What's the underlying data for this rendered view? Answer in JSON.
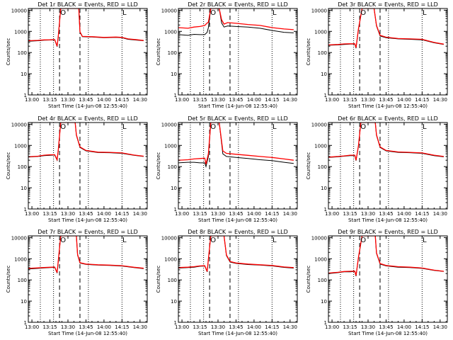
{
  "colors": {
    "background": "#ffffff",
    "axes": "#000000",
    "events": "#000000",
    "lld": "#ff0000"
  },
  "chart_data": {
    "type": "line",
    "layout": "3x3 grid",
    "x_tick_labels": [
      "13:00",
      "13:15",
      "13:30",
      "13:45",
      "14:00",
      "14:15",
      "14:30"
    ],
    "x_minutes_after_1300": [
      0,
      15,
      30,
      45,
      60,
      75,
      90
    ],
    "xlim_minutes": [
      -3,
      96
    ],
    "xlabel": "Start Time (14-Jun-08 12:55:40)",
    "ylabel": "Counts/sec",
    "yscale": "log",
    "ylim": [
      1,
      12000
    ],
    "y_tick_labels": [
      "1",
      "10",
      "100",
      "1000",
      "10000"
    ],
    "markers": {
      "dotted_vertical_minutes": [
        7,
        18,
        47,
        75
      ],
      "dashed_vertical_minutes": [
        23,
        40
      ],
      "symbols": [
        {
          "text": "O",
          "minute": 26
        },
        {
          "text": "L",
          "minute": 77
        }
      ]
    },
    "panels": [
      {
        "title": "Det 1r BLACK = Events, RED = LLD",
        "events": [
          [
            -3,
            340
          ],
          [
            5,
            360
          ],
          [
            10,
            380
          ],
          [
            15,
            390
          ],
          [
            19,
            400
          ],
          [
            21,
            190
          ],
          [
            22,
            600
          ],
          [
            24,
            12000
          ],
          [
            39,
            12000
          ],
          [
            40,
            900
          ],
          [
            42,
            560
          ],
          [
            50,
            540
          ],
          [
            60,
            500
          ],
          [
            70,
            520
          ],
          [
            75,
            500
          ],
          [
            80,
            420
          ],
          [
            88,
            380
          ],
          [
            93,
            360
          ]
        ],
        "lld": [
          [
            -3,
            360
          ],
          [
            5,
            375
          ],
          [
            10,
            395
          ],
          [
            15,
            400
          ],
          [
            19,
            410
          ],
          [
            21,
            200
          ],
          [
            22,
            620
          ],
          [
            24,
            12000
          ],
          [
            39,
            12000
          ],
          [
            40,
            950
          ],
          [
            42,
            580
          ],
          [
            50,
            560
          ],
          [
            60,
            520
          ],
          [
            70,
            540
          ],
          [
            75,
            520
          ],
          [
            80,
            440
          ],
          [
            88,
            400
          ],
          [
            93,
            370
          ]
        ]
      },
      {
        "title": "Det 2r BLACK = Events, RED = LLD",
        "events": [
          [
            -3,
            700
          ],
          [
            5,
            650
          ],
          [
            10,
            720
          ],
          [
            15,
            700
          ],
          [
            19,
            700
          ],
          [
            21,
            900
          ],
          [
            22,
            1500
          ],
          [
            24,
            12000
          ],
          [
            31,
            12000
          ],
          [
            33,
            2500
          ],
          [
            35,
            1600
          ],
          [
            38,
            1800
          ],
          [
            45,
            1700
          ],
          [
            55,
            1600
          ],
          [
            65,
            1400
          ],
          [
            75,
            1100
          ],
          [
            85,
            900
          ],
          [
            93,
            850
          ]
        ],
        "lld": [
          [
            -3,
            1500
          ],
          [
            5,
            1400
          ],
          [
            10,
            1600
          ],
          [
            15,
            1700
          ],
          [
            19,
            1900
          ],
          [
            21,
            2500
          ],
          [
            22,
            2700
          ],
          [
            24,
            12000
          ],
          [
            31,
            12000
          ],
          [
            33,
            3500
          ],
          [
            35,
            2200
          ],
          [
            38,
            2600
          ],
          [
            45,
            2400
          ],
          [
            55,
            2100
          ],
          [
            65,
            1900
          ],
          [
            75,
            1500
          ],
          [
            85,
            1300
          ],
          [
            93,
            1200
          ]
        ]
      },
      {
        "title": "Det 3r BLACK = Events, RED = LLD",
        "events": [
          [
            -3,
            220
          ],
          [
            5,
            230
          ],
          [
            10,
            240
          ],
          [
            15,
            250
          ],
          [
            19,
            250
          ],
          [
            20,
            160
          ],
          [
            22,
            1200
          ],
          [
            25,
            12000
          ],
          [
            35,
            12000
          ],
          [
            37,
            1800
          ],
          [
            40,
            600
          ],
          [
            45,
            500
          ],
          [
            55,
            440
          ],
          [
            65,
            420
          ],
          [
            75,
            400
          ],
          [
            85,
            290
          ],
          [
            93,
            240
          ]
        ],
        "lld": [
          [
            -3,
            230
          ],
          [
            5,
            240
          ],
          [
            10,
            255
          ],
          [
            15,
            260
          ],
          [
            19,
            260
          ],
          [
            20,
            170
          ],
          [
            22,
            1300
          ],
          [
            25,
            12000
          ],
          [
            35,
            12000
          ],
          [
            37,
            1900
          ],
          [
            40,
            650
          ],
          [
            45,
            530
          ],
          [
            55,
            460
          ],
          [
            65,
            440
          ],
          [
            75,
            420
          ],
          [
            85,
            300
          ],
          [
            93,
            250
          ]
        ]
      },
      {
        "title": "Det 4r BLACK = Events, RED = LLD",
        "events": [
          [
            -3,
            280
          ],
          [
            5,
            300
          ],
          [
            10,
            330
          ],
          [
            15,
            340
          ],
          [
            19,
            350
          ],
          [
            21,
            200
          ],
          [
            22,
            600
          ],
          [
            24,
            12000
          ],
          [
            36,
            12000
          ],
          [
            37,
            3000
          ],
          [
            40,
            800
          ],
          [
            45,
            550
          ],
          [
            55,
            460
          ],
          [
            65,
            450
          ],
          [
            75,
            420
          ],
          [
            85,
            340
          ],
          [
            93,
            300
          ]
        ],
        "lld": [
          [
            -3,
            290
          ],
          [
            5,
            310
          ],
          [
            10,
            345
          ],
          [
            15,
            360
          ],
          [
            19,
            365
          ],
          [
            21,
            210
          ],
          [
            22,
            650
          ],
          [
            24,
            12000
          ],
          [
            36,
            12000
          ],
          [
            37,
            3200
          ],
          [
            40,
            850
          ],
          [
            45,
            580
          ],
          [
            55,
            480
          ],
          [
            65,
            470
          ],
          [
            75,
            440
          ],
          [
            85,
            350
          ],
          [
            93,
            310
          ]
        ]
      },
      {
        "title": "Det 5r BLACK = Events, RED = LLD",
        "events": [
          [
            -3,
            150
          ],
          [
            5,
            160
          ],
          [
            10,
            160
          ],
          [
            15,
            150
          ],
          [
            19,
            150
          ],
          [
            20,
            100
          ],
          [
            22,
            300
          ],
          [
            24,
            12000
          ],
          [
            31,
            12000
          ],
          [
            34,
            400
          ],
          [
            37,
            300
          ],
          [
            45,
            270
          ],
          [
            55,
            240
          ],
          [
            65,
            210
          ],
          [
            75,
            190
          ],
          [
            85,
            160
          ],
          [
            93,
            140
          ]
        ],
        "lld": [
          [
            -3,
            200
          ],
          [
            5,
            210
          ],
          [
            10,
            230
          ],
          [
            15,
            240
          ],
          [
            19,
            250
          ],
          [
            20,
            130
          ],
          [
            22,
            400
          ],
          [
            24,
            12000
          ],
          [
            31,
            12000
          ],
          [
            34,
            550
          ],
          [
            37,
            420
          ],
          [
            45,
            380
          ],
          [
            55,
            340
          ],
          [
            65,
            300
          ],
          [
            75,
            270
          ],
          [
            85,
            230
          ],
          [
            93,
            200
          ]
        ]
      },
      {
        "title": "Det 6r BLACK = Events, RED = LLD",
        "events": [
          [
            -3,
            270
          ],
          [
            5,
            290
          ],
          [
            10,
            310
          ],
          [
            15,
            330
          ],
          [
            19,
            330
          ],
          [
            20,
            190
          ],
          [
            22,
            900
          ],
          [
            24,
            12000
          ],
          [
            36,
            12000
          ],
          [
            37,
            3000
          ],
          [
            40,
            800
          ],
          [
            45,
            550
          ],
          [
            55,
            470
          ],
          [
            65,
            450
          ],
          [
            75,
            420
          ],
          [
            85,
            330
          ],
          [
            93,
            290
          ]
        ],
        "lld": [
          [
            -3,
            280
          ],
          [
            5,
            300
          ],
          [
            10,
            320
          ],
          [
            15,
            345
          ],
          [
            19,
            345
          ],
          [
            20,
            200
          ],
          [
            22,
            950
          ],
          [
            24,
            12000
          ],
          [
            36,
            12000
          ],
          [
            37,
            3200
          ],
          [
            40,
            850
          ],
          [
            45,
            580
          ],
          [
            55,
            490
          ],
          [
            65,
            470
          ],
          [
            75,
            440
          ],
          [
            85,
            345
          ],
          [
            93,
            300
          ]
        ]
      },
      {
        "title": "Det 7r BLACK = Events, RED = LLD",
        "events": [
          [
            -3,
            330
          ],
          [
            5,
            350
          ],
          [
            10,
            370
          ],
          [
            15,
            380
          ],
          [
            19,
            390
          ],
          [
            21,
            210
          ],
          [
            22,
            800
          ],
          [
            24,
            12000
          ],
          [
            37,
            12000
          ],
          [
            38,
            1500
          ],
          [
            40,
            620
          ],
          [
            45,
            540
          ],
          [
            55,
            500
          ],
          [
            65,
            480
          ],
          [
            75,
            450
          ],
          [
            85,
            380
          ],
          [
            93,
            340
          ]
        ],
        "lld": [
          [
            -3,
            350
          ],
          [
            5,
            370
          ],
          [
            10,
            385
          ],
          [
            15,
            395
          ],
          [
            19,
            405
          ],
          [
            21,
            220
          ],
          [
            22,
            850
          ],
          [
            24,
            12000
          ],
          [
            37,
            12000
          ],
          [
            38,
            1600
          ],
          [
            40,
            650
          ],
          [
            45,
            560
          ],
          [
            55,
            520
          ],
          [
            65,
            500
          ],
          [
            75,
            470
          ],
          [
            85,
            395
          ],
          [
            93,
            355
          ]
        ]
      },
      {
        "title": "Det 8r BLACK = Events, RED = LLD",
        "events": [
          [
            -3,
            360
          ],
          [
            5,
            380
          ],
          [
            10,
            400
          ],
          [
            15,
            440
          ],
          [
            19,
            450
          ],
          [
            21,
            240
          ],
          [
            22,
            900
          ],
          [
            24,
            12000
          ],
          [
            35,
            12000
          ],
          [
            37,
            1400
          ],
          [
            40,
            700
          ],
          [
            45,
            600
          ],
          [
            55,
            530
          ],
          [
            65,
            500
          ],
          [
            75,
            460
          ],
          [
            85,
            390
          ],
          [
            93,
            360
          ]
        ],
        "lld": [
          [
            -3,
            380
          ],
          [
            5,
            400
          ],
          [
            10,
            420
          ],
          [
            15,
            460
          ],
          [
            19,
            470
          ],
          [
            21,
            250
          ],
          [
            22,
            950
          ],
          [
            24,
            12000
          ],
          [
            35,
            12000
          ],
          [
            37,
            1500
          ],
          [
            40,
            740
          ],
          [
            45,
            630
          ],
          [
            55,
            560
          ],
          [
            65,
            520
          ],
          [
            75,
            480
          ],
          [
            85,
            410
          ],
          [
            93,
            380
          ]
        ]
      },
      {
        "title": "Det 9r BLACK = Events, RED = LLD",
        "events": [
          [
            -3,
            200
          ],
          [
            5,
            220
          ],
          [
            10,
            240
          ],
          [
            15,
            240
          ],
          [
            19,
            250
          ],
          [
            20,
            150
          ],
          [
            22,
            1100
          ],
          [
            25,
            12000
          ],
          [
            36,
            12000
          ],
          [
            37,
            1800
          ],
          [
            40,
            560
          ],
          [
            45,
            460
          ],
          [
            55,
            400
          ],
          [
            65,
            380
          ],
          [
            75,
            350
          ],
          [
            85,
            280
          ],
          [
            93,
            250
          ]
        ],
        "lld": [
          [
            -3,
            210
          ],
          [
            5,
            230
          ],
          [
            10,
            250
          ],
          [
            15,
            255
          ],
          [
            19,
            260
          ],
          [
            20,
            160
          ],
          [
            22,
            1150
          ],
          [
            25,
            12000
          ],
          [
            36,
            12000
          ],
          [
            37,
            1900
          ],
          [
            40,
            590
          ],
          [
            45,
            480
          ],
          [
            55,
            420
          ],
          [
            65,
            400
          ],
          [
            75,
            365
          ],
          [
            85,
            290
          ],
          [
            93,
            255
          ]
        ]
      }
    ]
  }
}
